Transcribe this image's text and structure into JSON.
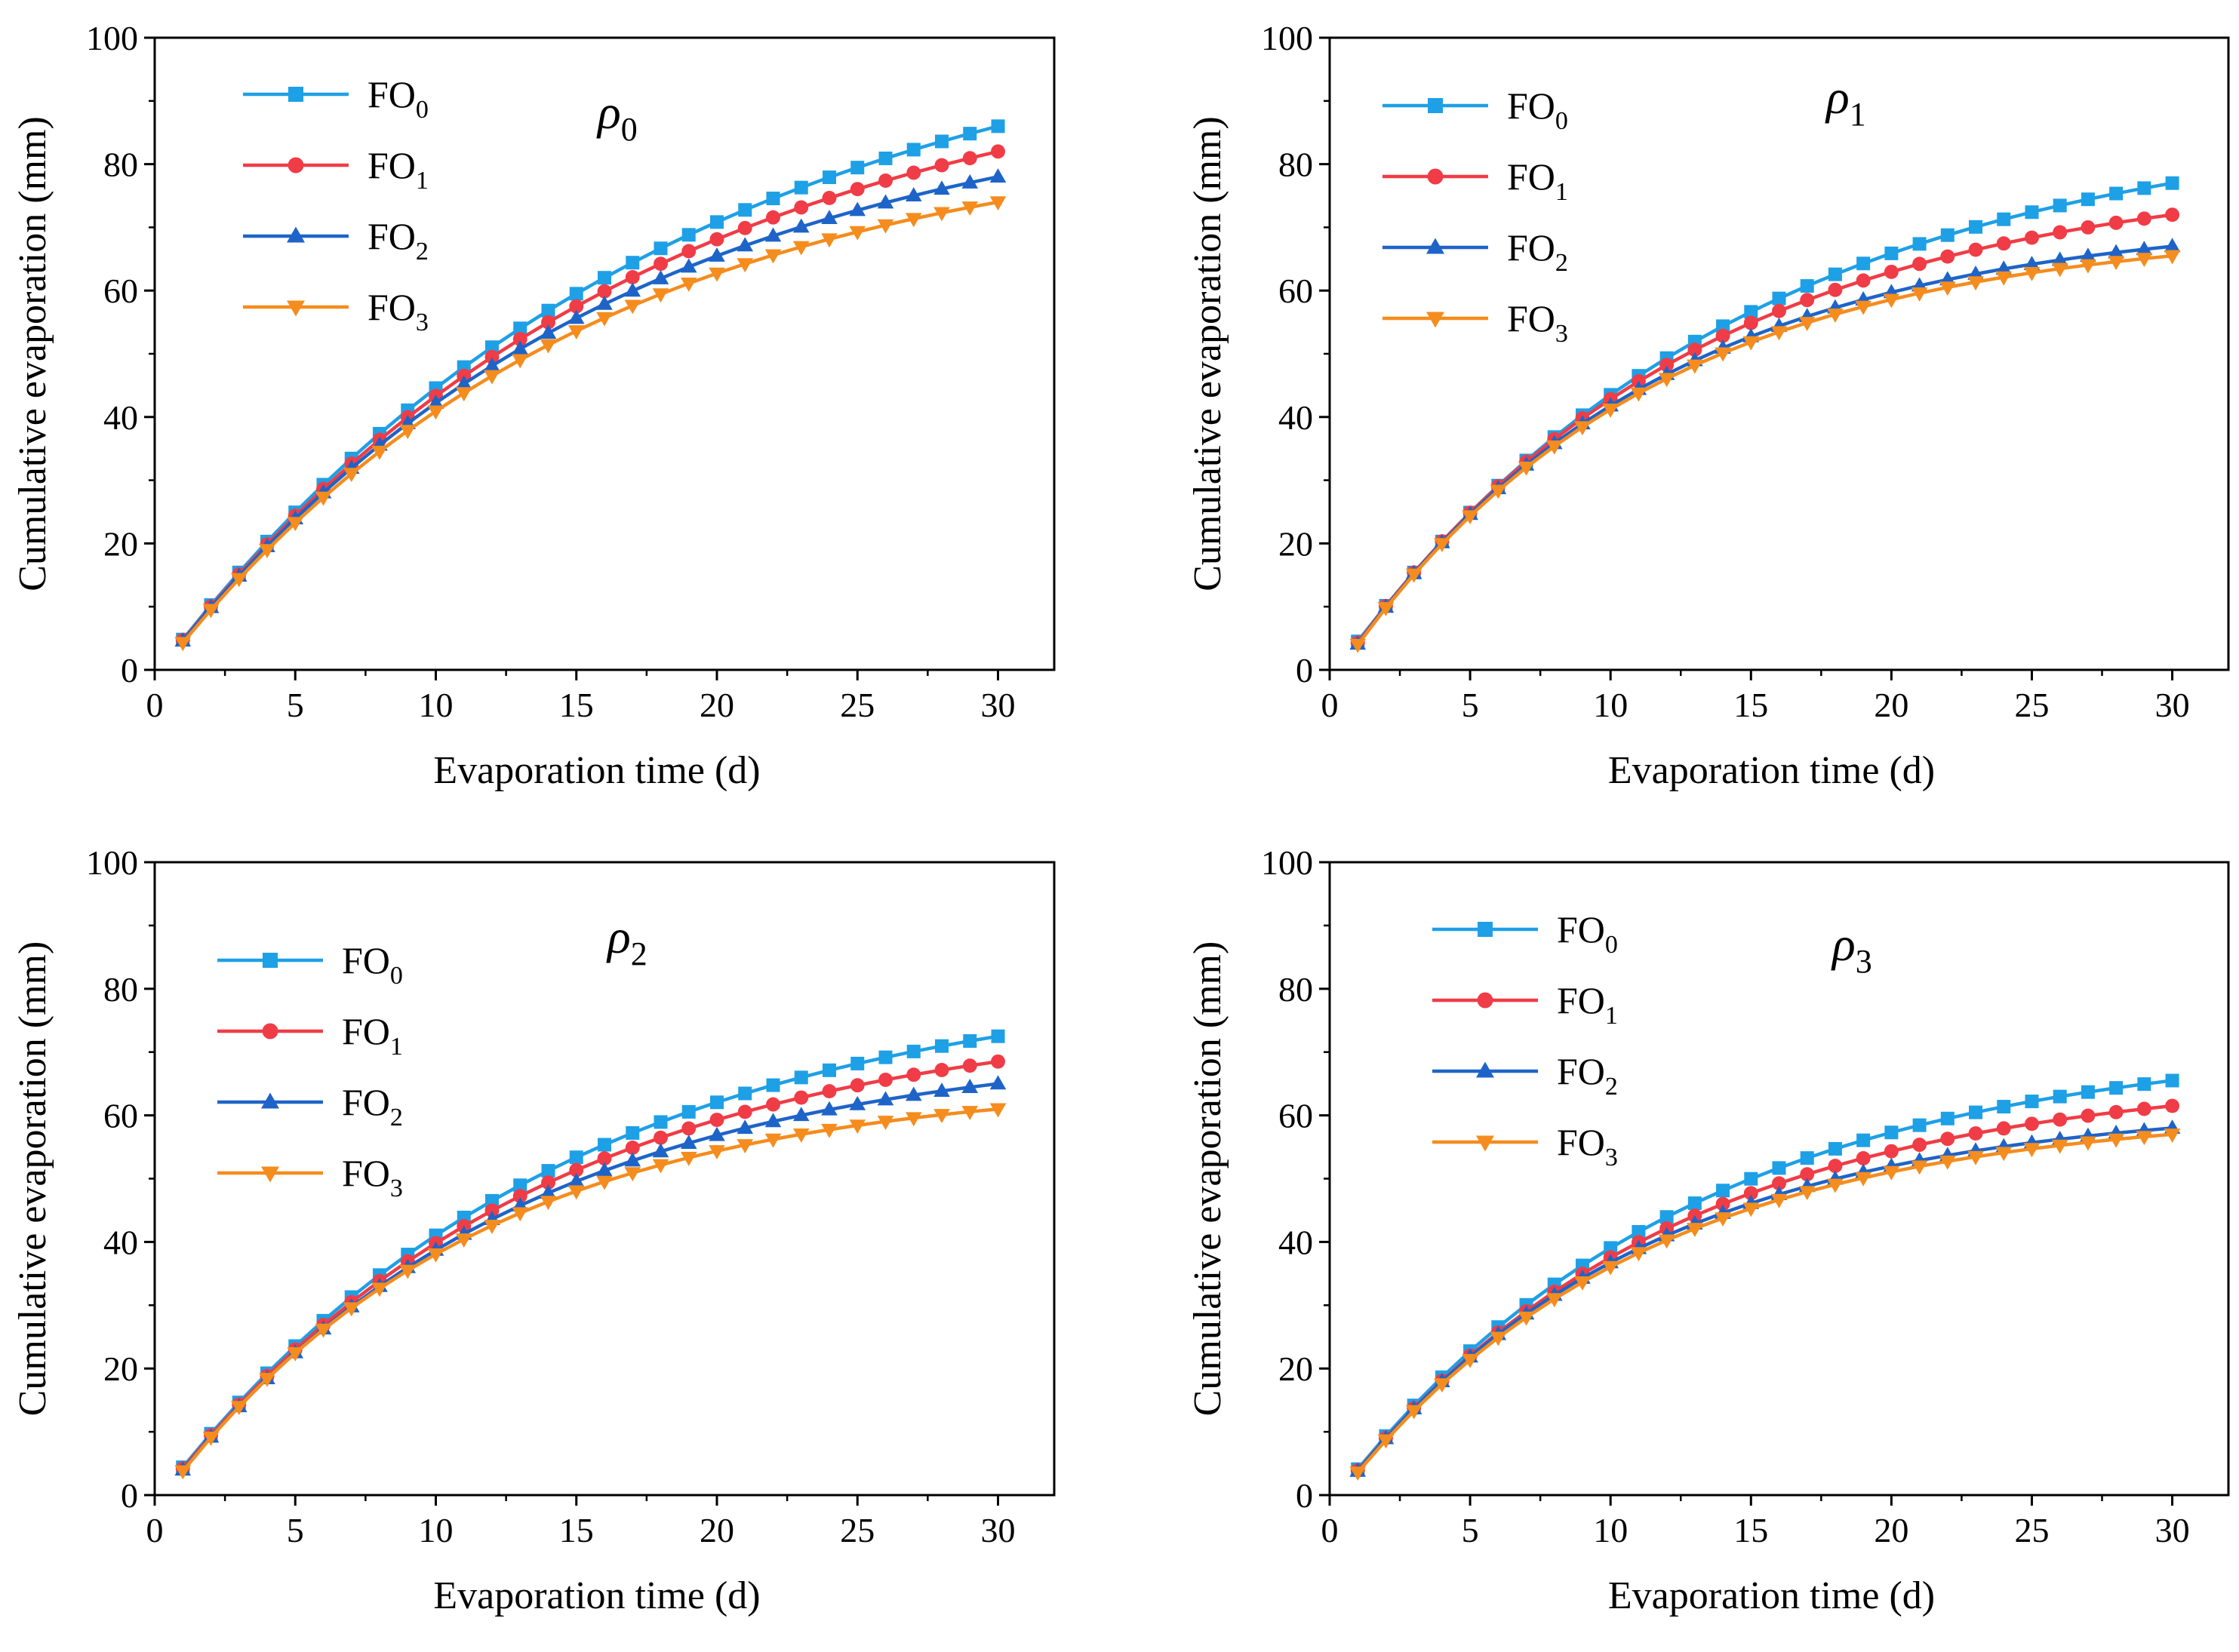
{
  "chart_data": [
    {
      "type": "line",
      "panel_label": {
        "symbol": "ρ",
        "sub": "0"
      },
      "xlabel": "Evaporation time (d)",
      "ylabel": "Cumulative evaporation (mm)",
      "xlim": [
        0,
        32
      ],
      "ylim": [
        0,
        100
      ],
      "xticks": [
        0,
        5,
        10,
        15,
        20,
        25,
        30
      ],
      "yticks": [
        0,
        20,
        40,
        60,
        80,
        100
      ],
      "legend_position": "top-left",
      "series": [
        {
          "name": "FO",
          "sub": "0",
          "marker": "square",
          "color": "#1EA0E6",
          "start": 4.8,
          "end": 86.0,
          "k": 0.055
        },
        {
          "name": "FO",
          "sub": "1",
          "marker": "circle",
          "color": "#F03C46",
          "start": 4.7,
          "end": 82.0,
          "k": 0.058
        },
        {
          "name": "FO",
          "sub": "2",
          "marker": "triangle-up",
          "color": "#1E64C8",
          "start": 4.6,
          "end": 78.0,
          "k": 0.062
        },
        {
          "name": "FO",
          "sub": "3",
          "marker": "triangle-down",
          "color": "#F58C1E",
          "start": 4.3,
          "end": 74.0,
          "k": 0.066
        }
      ]
    },
    {
      "type": "line",
      "panel_label": {
        "symbol": "ρ",
        "sub": "1"
      },
      "xlabel": "Evaporation time (d)",
      "ylabel": "Cumulative evaporation (mm)",
      "xlim": [
        0,
        32
      ],
      "ylim": [
        0,
        100
      ],
      "xticks": [
        0,
        5,
        10,
        15,
        20,
        25,
        30
      ],
      "yticks": [
        0,
        20,
        40,
        60,
        80,
        100
      ],
      "legend_position": "top-left",
      "series": [
        {
          "name": "FO",
          "sub": "0",
          "marker": "square",
          "color": "#1EA0E6",
          "start": 4.5,
          "end": 77.0,
          "k": 0.07
        },
        {
          "name": "FO",
          "sub": "1",
          "marker": "circle",
          "color": "#F03C46",
          "start": 4.3,
          "end": 72.0,
          "k": 0.08
        },
        {
          "name": "FO",
          "sub": "2",
          "marker": "triangle-up",
          "color": "#1E64C8",
          "start": 4.1,
          "end": 67.0,
          "k": 0.09
        },
        {
          "name": "FO",
          "sub": "3",
          "marker": "triangle-down",
          "color": "#F58C1E",
          "start": 4.0,
          "end": 65.5,
          "k": 0.092
        }
      ]
    },
    {
      "type": "line",
      "panel_label": {
        "symbol": "ρ",
        "sub": "2"
      },
      "xlabel": "Evaporation time (d)",
      "ylabel": "Cumulative evaporation (mm)",
      "xlim": [
        0,
        32
      ],
      "ylim": [
        0,
        100
      ],
      "xticks": [
        0,
        5,
        10,
        15,
        20,
        25,
        30
      ],
      "yticks": [
        0,
        20,
        40,
        60,
        80,
        100
      ],
      "legend_position": "top-left",
      "series": [
        {
          "name": "FO",
          "sub": "0",
          "marker": "square",
          "color": "#1EA0E6",
          "start": 4.4,
          "end": 72.5,
          "k": 0.07
        },
        {
          "name": "FO",
          "sub": "1",
          "marker": "circle",
          "color": "#F03C46",
          "start": 4.2,
          "end": 68.5,
          "k": 0.075
        },
        {
          "name": "FO",
          "sub": "2",
          "marker": "triangle-up",
          "color": "#1E64C8",
          "start": 4.0,
          "end": 65.0,
          "k": 0.08
        },
        {
          "name": "FO",
          "sub": "3",
          "marker": "triangle-down",
          "color": "#F58C1E",
          "start": 3.8,
          "end": 61.0,
          "k": 0.09
        }
      ]
    },
    {
      "type": "line",
      "panel_label": {
        "symbol": "ρ",
        "sub": "3"
      },
      "xlabel": "Evaporation time (d)",
      "ylabel": "Cumulative evaporation (mm)",
      "xlim": [
        0,
        32
      ],
      "ylim": [
        0,
        100
      ],
      "xticks": [
        0,
        5,
        10,
        15,
        20,
        25,
        30
      ],
      "yticks": [
        0,
        20,
        40,
        60,
        80,
        100
      ],
      "legend_position": "top-left",
      "series": [
        {
          "name": "FO",
          "sub": "0",
          "marker": "square",
          "color": "#1EA0E6",
          "start": 4.1,
          "end": 65.5,
          "k": 0.08
        },
        {
          "name": "FO",
          "sub": "1",
          "marker": "circle",
          "color": "#F03C46",
          "start": 3.9,
          "end": 61.5,
          "k": 0.085
        },
        {
          "name": "FO",
          "sub": "2",
          "marker": "triangle-up",
          "color": "#1E64C8",
          "start": 3.8,
          "end": 58.0,
          "k": 0.093
        },
        {
          "name": "FO",
          "sub": "3",
          "marker": "triangle-down",
          "color": "#F58C1E",
          "start": 3.6,
          "end": 57.0,
          "k": 0.093
        }
      ]
    }
  ]
}
